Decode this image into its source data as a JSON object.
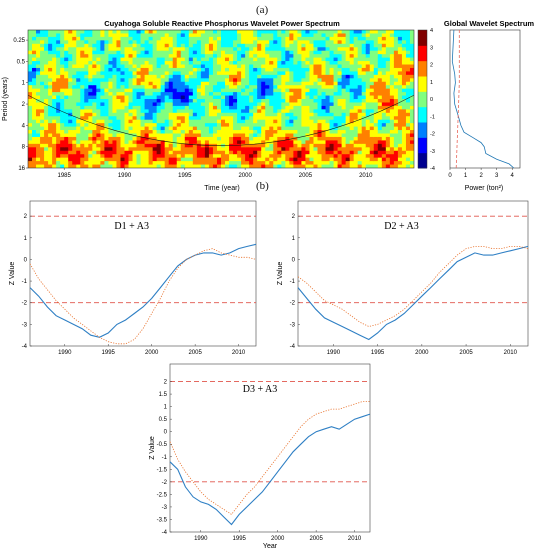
{
  "panel_labels": {
    "a": "(a)",
    "b": "(b)"
  },
  "chart_data": [
    {
      "type": "heatmap",
      "title": "Cuyahoga Soluble Reactive Phosphorus Wavelet Power Spectrum",
      "xlabel": "Time (year)",
      "ylabel": "Period (years)",
      "x_ticks": [
        "1985",
        "1990",
        "1995",
        "2000",
        "2005",
        "2010"
      ],
      "y_ticks": [
        "0.25",
        "0.5",
        "1",
        "2",
        "4",
        "8",
        "16"
      ],
      "xlim": [
        1982,
        2014
      ],
      "y_scale": "log2",
      "ylim": [
        0.18,
        16
      ],
      "colorbar": {
        "range": [
          -4,
          4
        ],
        "ticks": [
          "4",
          "3",
          "2",
          "1",
          "0",
          "-1",
          "-2",
          "-3",
          "-4"
        ]
      },
      "colormap": [
        "#00008f",
        "#0000ff",
        "#0080ff",
        "#00ffff",
        "#80ff80",
        "#ffff00",
        "#ff8000",
        "#ff0000",
        "#800000"
      ]
    },
    {
      "type": "line",
      "title": "Global Wavelet Spectrum",
      "xlabel": "Power (ton²)",
      "x_ticks": [
        "0",
        "1",
        "2",
        "3",
        "4"
      ],
      "xlim": [
        0,
        4.5
      ],
      "series": [
        {
          "style": "solid",
          "color": "#1f77b4",
          "points": [
            [
              0.25,
              0.18
            ],
            [
              0.2,
              0.3
            ],
            [
              0.15,
              0.5
            ],
            [
              0.3,
              0.75
            ],
            [
              0.35,
              1
            ],
            [
              0.25,
              1.4
            ],
            [
              0.3,
              2
            ],
            [
              0.5,
              2.8
            ],
            [
              0.7,
              4
            ],
            [
              0.9,
              5
            ],
            [
              1.5,
              6
            ],
            [
              2.0,
              7
            ],
            [
              2.2,
              8
            ],
            [
              2.3,
              10
            ],
            [
              3.0,
              12
            ],
            [
              3.8,
              14
            ],
            [
              4.1,
              16
            ]
          ]
        },
        {
          "style": "dashed",
          "color": "#e8665a",
          "points": [
            [
              0.6,
              0.18
            ],
            [
              0.6,
              1
            ],
            [
              0.55,
              2
            ],
            [
              0.5,
              4
            ],
            [
              0.45,
              8
            ],
            [
              0.4,
              16
            ]
          ]
        }
      ]
    },
    {
      "type": "line",
      "annotation": "D1 + A3",
      "ylabel": "Z Value",
      "x_ticks": [
        "1990",
        "1995",
        "2000",
        "2005",
        "2010"
      ],
      "y_ticks": [
        "2",
        "1",
        "0",
        "-1",
        "-2",
        "-3",
        "-4"
      ],
      "xlim": [
        1986,
        2012
      ],
      "ylim": [
        -4,
        2.7
      ],
      "reference_lines": [
        2,
        -2
      ],
      "series": [
        {
          "style": "solid",
          "color": "#2e7fc4",
          "x": [
            1986,
            1987,
            1988,
            1989,
            1990,
            1991,
            1992,
            1993,
            1994,
            1995,
            1996,
            1997,
            1998,
            1999,
            2000,
            2001,
            2002,
            2003,
            2004,
            2005,
            2006,
            2007,
            2008,
            2009,
            2010,
            2011,
            2012
          ],
          "y": [
            -1.3,
            -1.7,
            -2.2,
            -2.6,
            -2.8,
            -3.0,
            -3.2,
            -3.5,
            -3.6,
            -3.4,
            -3.0,
            -2.8,
            -2.5,
            -2.2,
            -1.8,
            -1.3,
            -0.8,
            -0.3,
            0.0,
            0.2,
            0.3,
            0.3,
            0.2,
            0.3,
            0.5,
            0.6,
            0.7
          ]
        },
        {
          "style": "dotted",
          "color": "#e8702a",
          "x": [
            1986,
            1987,
            1988,
            1989,
            1990,
            1991,
            1992,
            1993,
            1994,
            1995,
            1996,
            1997,
            1998,
            1999,
            2000,
            2001,
            2002,
            2003,
            2004,
            2005,
            2006,
            2007,
            2008,
            2009,
            2010,
            2011,
            2012
          ],
          "y": [
            -0.2,
            -0.9,
            -1.4,
            -1.9,
            -2.3,
            -2.7,
            -3.0,
            -3.3,
            -3.6,
            -3.8,
            -3.9,
            -3.9,
            -3.7,
            -3.2,
            -2.5,
            -1.8,
            -1.0,
            -0.4,
            0.0,
            0.2,
            0.4,
            0.5,
            0.3,
            0.2,
            0.1,
            0.1,
            0.0
          ]
        }
      ]
    },
    {
      "type": "line",
      "annotation": "D2 + A3",
      "ylabel": "Z Value",
      "x_ticks": [
        "1990",
        "1995",
        "2000",
        "2005",
        "2010"
      ],
      "y_ticks": [
        "2",
        "1",
        "0",
        "-1",
        "-2",
        "-3",
        "-4"
      ],
      "xlim": [
        1986,
        2012
      ],
      "ylim": [
        -4,
        2.7
      ],
      "reference_lines": [
        2,
        -2
      ],
      "series": [
        {
          "style": "solid",
          "color": "#2e7fc4",
          "x": [
            1986,
            1987,
            1988,
            1989,
            1990,
            1991,
            1992,
            1993,
            1994,
            1995,
            1996,
            1997,
            1998,
            1999,
            2000,
            2001,
            2002,
            2003,
            2004,
            2005,
            2006,
            2007,
            2008,
            2009,
            2010,
            2011,
            2012
          ],
          "y": [
            -1.3,
            -1.8,
            -2.3,
            -2.7,
            -2.9,
            -3.1,
            -3.3,
            -3.5,
            -3.7,
            -3.4,
            -3.0,
            -2.8,
            -2.5,
            -2.1,
            -1.7,
            -1.3,
            -0.9,
            -0.5,
            -0.1,
            0.1,
            0.3,
            0.2,
            0.2,
            0.3,
            0.4,
            0.5,
            0.6
          ]
        },
        {
          "style": "dotted",
          "color": "#e8702a",
          "x": [
            1986,
            1987,
            1988,
            1989,
            1990,
            1991,
            1992,
            1993,
            1994,
            1995,
            1996,
            1997,
            1998,
            1999,
            2000,
            2001,
            2002,
            2003,
            2004,
            2005,
            2006,
            2007,
            2008,
            2009,
            2010,
            2011,
            2012
          ],
          "y": [
            -0.8,
            -1.1,
            -1.5,
            -1.9,
            -2.1,
            -2.3,
            -2.6,
            -2.9,
            -3.1,
            -3.0,
            -2.8,
            -2.6,
            -2.3,
            -1.9,
            -1.5,
            -1.1,
            -0.6,
            -0.2,
            0.2,
            0.5,
            0.6,
            0.6,
            0.5,
            0.5,
            0.6,
            0.6,
            0.5
          ]
        }
      ]
    },
    {
      "type": "line",
      "annotation": "D3 + A3",
      "ylabel": "Z Value",
      "xlabel": "Year",
      "x_ticks": [
        "1990",
        "1995",
        "2000",
        "2005",
        "2010"
      ],
      "y_ticks": [
        "2",
        "1.5",
        "1",
        "0.5",
        "0",
        "-0.5",
        "-1",
        "-1.5",
        "-2",
        "-2.5",
        "-3",
        "-3.5",
        "-4"
      ],
      "y_tick_values": [
        2,
        1.5,
        1,
        0.5,
        0,
        -0.5,
        -1,
        -1.5,
        -2,
        -2.5,
        -3,
        -3.5,
        -4
      ],
      "xlim": [
        1986,
        2012
      ],
      "ylim": [
        -4,
        2.7
      ],
      "reference_lines": [
        2,
        -2
      ],
      "series": [
        {
          "style": "solid",
          "color": "#2e7fc4",
          "x": [
            1986,
            1987,
            1988,
            1989,
            1990,
            1991,
            1992,
            1993,
            1994,
            1995,
            1996,
            1997,
            1998,
            1999,
            2000,
            2001,
            2002,
            2003,
            2004,
            2005,
            2006,
            2007,
            2008,
            2009,
            2010,
            2011,
            2012
          ],
          "y": [
            -1.2,
            -1.5,
            -2.2,
            -2.6,
            -2.8,
            -2.9,
            -3.1,
            -3.4,
            -3.7,
            -3.3,
            -3.0,
            -2.7,
            -2.4,
            -2.0,
            -1.6,
            -1.2,
            -0.8,
            -0.5,
            -0.2,
            0.0,
            0.1,
            0.2,
            0.1,
            0.3,
            0.5,
            0.6,
            0.7
          ]
        },
        {
          "style": "dotted",
          "color": "#e8702a",
          "x": [
            1986,
            1987,
            1988,
            1989,
            1990,
            1991,
            1992,
            1993,
            1994,
            1995,
            1996,
            1997,
            1998,
            1999,
            2000,
            2001,
            2002,
            2003,
            2004,
            2005,
            2006,
            2007,
            2008,
            2009,
            2010,
            2011,
            2012
          ],
          "y": [
            -0.4,
            -1.1,
            -1.6,
            -2.0,
            -2.4,
            -2.7,
            -2.9,
            -3.1,
            -3.3,
            -2.9,
            -2.5,
            -2.2,
            -1.8,
            -1.4,
            -1.0,
            -0.6,
            -0.2,
            0.2,
            0.5,
            0.7,
            0.8,
            0.9,
            0.9,
            1.0,
            1.1,
            1.2,
            1.2
          ]
        }
      ]
    }
  ]
}
